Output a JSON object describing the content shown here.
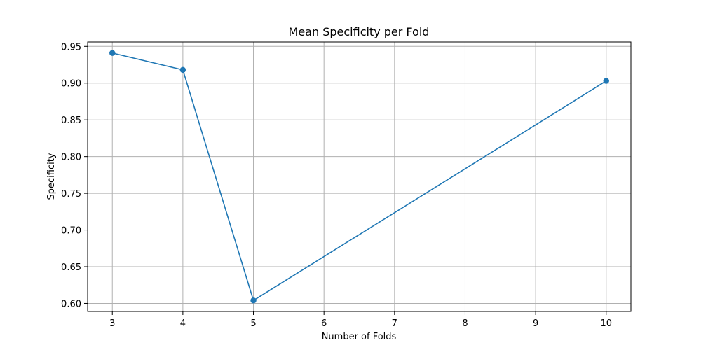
{
  "chart_data": {
    "type": "line",
    "title": "Mean Specificity per Fold",
    "xlabel": "Number of Folds",
    "ylabel": "Specificity",
    "x": [
      3,
      4,
      5,
      10
    ],
    "series": [
      {
        "values": [
          0.941,
          0.918,
          0.604,
          0.903
        ],
        "color": "#1f77b4",
        "marker": "circle"
      }
    ],
    "xlim": [
      2.65,
      10.35
    ],
    "ylim": [
      0.589,
      0.956
    ],
    "xticks": [
      3,
      4,
      5,
      6,
      7,
      8,
      9,
      10
    ],
    "yticks": [
      0.6,
      0.65,
      0.7,
      0.75,
      0.8,
      0.85,
      0.9,
      0.95
    ],
    "ytick_labels": [
      "0.60",
      "0.65",
      "0.70",
      "0.75",
      "0.80",
      "0.85",
      "0.90",
      "0.95"
    ],
    "grid": true,
    "legend": "none"
  }
}
